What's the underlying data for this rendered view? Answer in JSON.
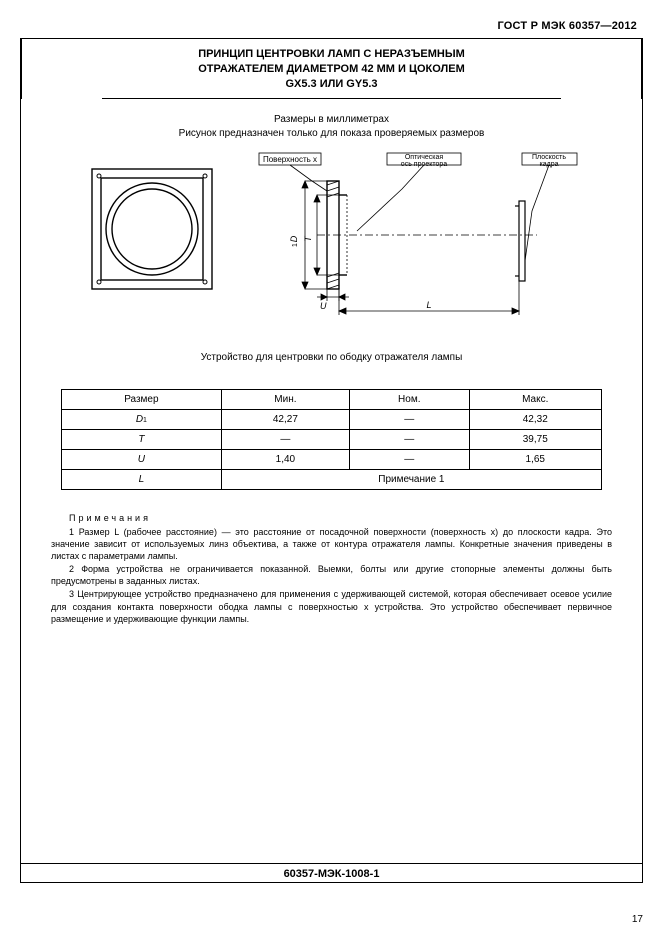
{
  "doc_header": "ГОСТ Р МЭК 60357—2012",
  "title_l1": "ПРИНЦИП ЦЕНТРОВКИ ЛАМП С НЕРАЗЪЕМНЫМ",
  "title_l2": "ОТРАЖАТЕЛЕМ ДИАМЕТРОМ 42 ММ И ЦОКОЛЕМ",
  "title_l3": "GX5.3 ИЛИ GY5.3",
  "subtitle_l1": "Размеры в миллиметрах",
  "subtitle_l2": "Рисунок предназначен только для показа проверяемых размеров",
  "diagram": {
    "label_surface_x": "Поверхность x",
    "label_optical_axis": "Оптическая ось проектора",
    "label_frame_plane": "Плоскость кадра",
    "dim_D1": "D₁",
    "dim_T": "T",
    "dim_U": "U",
    "dim_L": "L",
    "colors": {
      "stroke": "#000000",
      "fill_bg": "#ffffff",
      "hatch": "#000000"
    }
  },
  "caption": "Устройство для центровки по ободку отражателя лампы",
  "table": {
    "headers": [
      "Размер",
      "Мин.",
      "Ном.",
      "Макс."
    ],
    "rows": [
      {
        "label_html": "<span class='ital'>D</span><span class='sub1'>1</span>",
        "min": "42,27",
        "nom": "—",
        "max": "42,32"
      },
      {
        "label_html": "<span class='ital'>T</span>",
        "min": "—",
        "nom": "—",
        "max": "39,75"
      },
      {
        "label_html": "<span class='ital'>U</span>",
        "min": "1,40",
        "nom": "—",
        "max": "1,65"
      },
      {
        "label_html": "<span class='ital'>L</span>",
        "min_colspan3": "Примечание  1"
      }
    ]
  },
  "notes": {
    "heading": "Примечания",
    "n1": "1 Размер L (рабочее расстояние) — это расстояние от посадочной поверхности (поверхность x) до плоскости кадра. Это значение зависит от используемых линз объектива, а также от контура отражателя лампы. Конкретные значения приведены в листах с параметрами лампы.",
    "n2": "2 Форма устройства не ограничивается показанной. Выемки, болты или другие стопорные элементы должны быть предусмотрены в заданных листах.",
    "n3": "3 Центрирующее устройство предназначено для применения с удерживающей системой, которая обеспечивает осевое усилие для создания контакта поверхности ободка лампы с поверхностью x устройства. Это устройство обеспечивает первичное размещение и удерживающие функции лампы."
  },
  "footer_code": "60357-МЭК-1008-1",
  "page_number": "17"
}
